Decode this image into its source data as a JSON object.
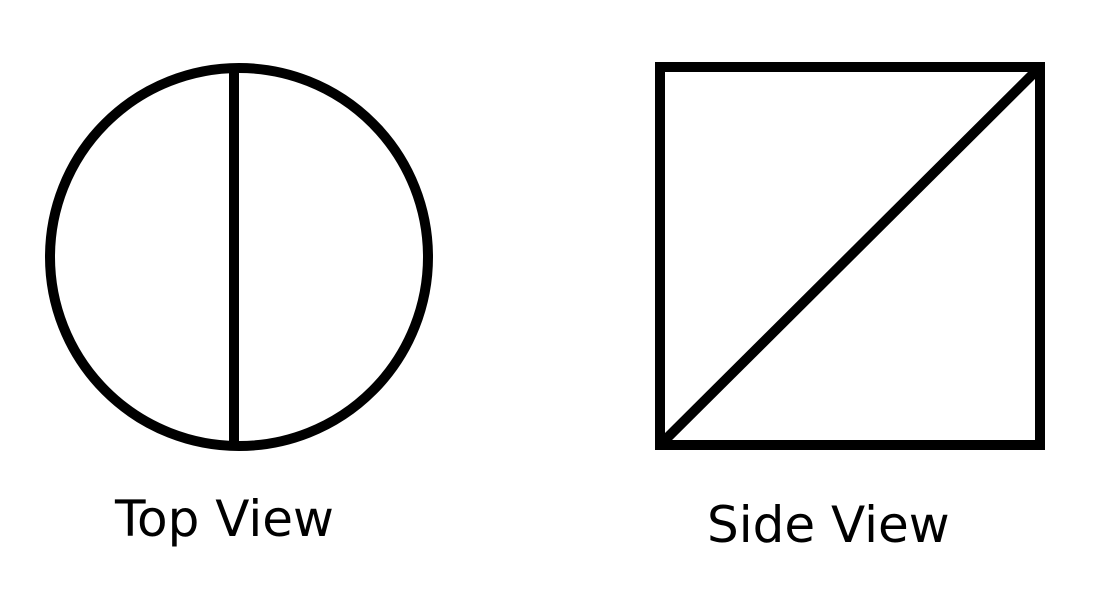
{
  "top_view": {
    "label": "Top View"
  },
  "side_view": {
    "label": "Side View"
  },
  "colors": {
    "stroke": "#000000",
    "background": "#ffffff"
  }
}
